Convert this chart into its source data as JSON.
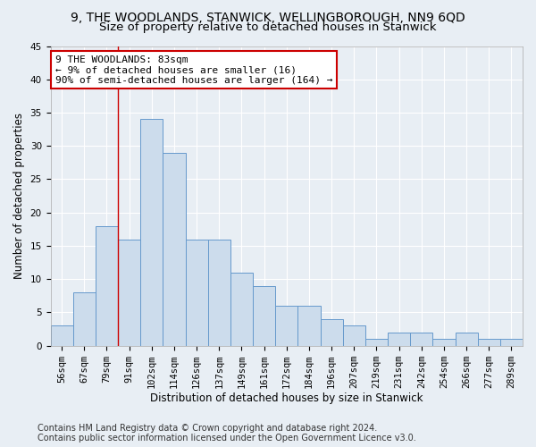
{
  "title": "9, THE WOODLANDS, STANWICK, WELLINGBOROUGH, NN9 6QD",
  "subtitle": "Size of property relative to detached houses in Stanwick",
  "xlabel": "Distribution of detached houses by size in Stanwick",
  "ylabel": "Number of detached properties",
  "categories": [
    "56sqm",
    "67sqm",
    "79sqm",
    "91sqm",
    "102sqm",
    "114sqm",
    "126sqm",
    "137sqm",
    "149sqm",
    "161sqm",
    "172sqm",
    "184sqm",
    "196sqm",
    "207sqm",
    "219sqm",
    "231sqm",
    "242sqm",
    "254sqm",
    "266sqm",
    "277sqm",
    "289sqm"
  ],
  "values": [
    3,
    8,
    18,
    16,
    34,
    29,
    16,
    16,
    11,
    9,
    6,
    6,
    4,
    3,
    1,
    2,
    2,
    1,
    2,
    1,
    1
  ],
  "bar_color": "#ccdcec",
  "bar_edge_color": "#6699cc",
  "vline_color": "#cc0000",
  "vline_x_index": 2.5,
  "annotation_text": "9 THE WOODLANDS: 83sqm\n← 9% of detached houses are smaller (16)\n90% of semi-detached houses are larger (164) →",
  "annotation_box_edge": "#cc0000",
  "annotation_box_face": "#ffffff",
  "ylim": [
    0,
    45
  ],
  "yticks": [
    0,
    5,
    10,
    15,
    20,
    25,
    30,
    35,
    40,
    45
  ],
  "footnote1": "Contains HM Land Registry data © Crown copyright and database right 2024.",
  "footnote2": "Contains public sector information licensed under the Open Government Licence v3.0.",
  "bg_color": "#e8eef4",
  "grid_color": "#ffffff",
  "title_fontsize": 10,
  "subtitle_fontsize": 9.5,
  "axis_label_fontsize": 8.5,
  "tick_fontsize": 7.5,
  "annotation_fontsize": 8,
  "footnote_fontsize": 7
}
